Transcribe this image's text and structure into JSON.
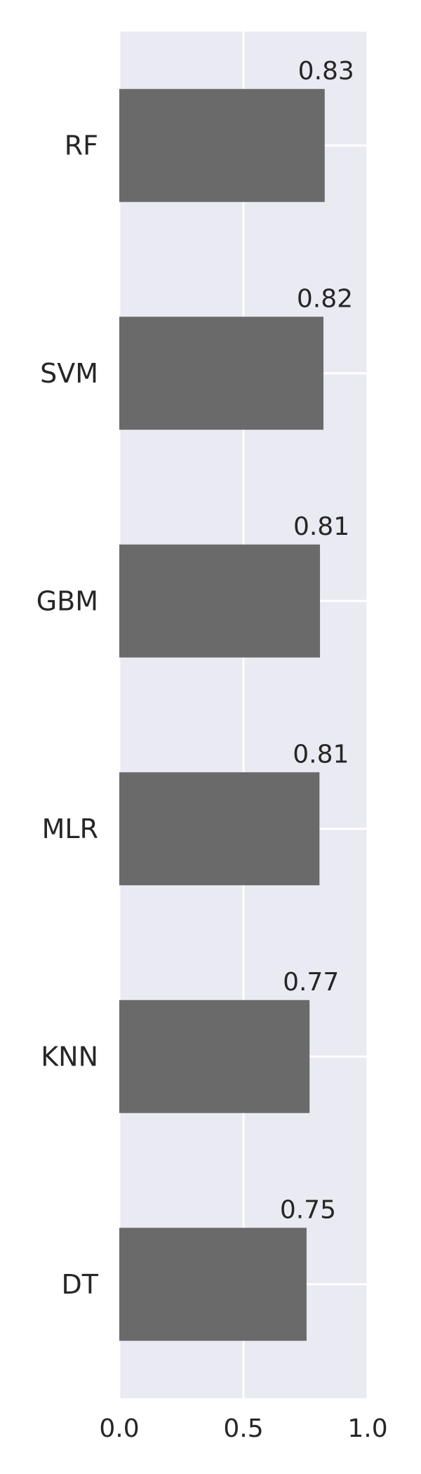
{
  "chart_data": {
    "type": "bar",
    "orientation": "horizontal",
    "title": "",
    "xlabel": "",
    "ylabel": "",
    "categories": [
      "RF",
      "SVM",
      "GBM",
      "MLR",
      "KNN",
      "DT"
    ],
    "values": [
      0.827,
      0.822,
      0.808,
      0.806,
      0.766,
      0.754
    ],
    "data_labels": [
      "0.83",
      "0.82",
      "0.81",
      "0.81",
      "0.77",
      "0.75"
    ],
    "xlim": [
      0.0,
      1.0
    ],
    "xticks": [
      0.0,
      0.5,
      1.0
    ],
    "xtick_labels": [
      "0.0",
      "0.5",
      "1.0"
    ],
    "grid": true,
    "legend": "none",
    "colors": {
      "plot_background": "#eaeaf2",
      "bar": "#6a6a6a",
      "grid": "#ffffff",
      "text": "#262626"
    }
  }
}
